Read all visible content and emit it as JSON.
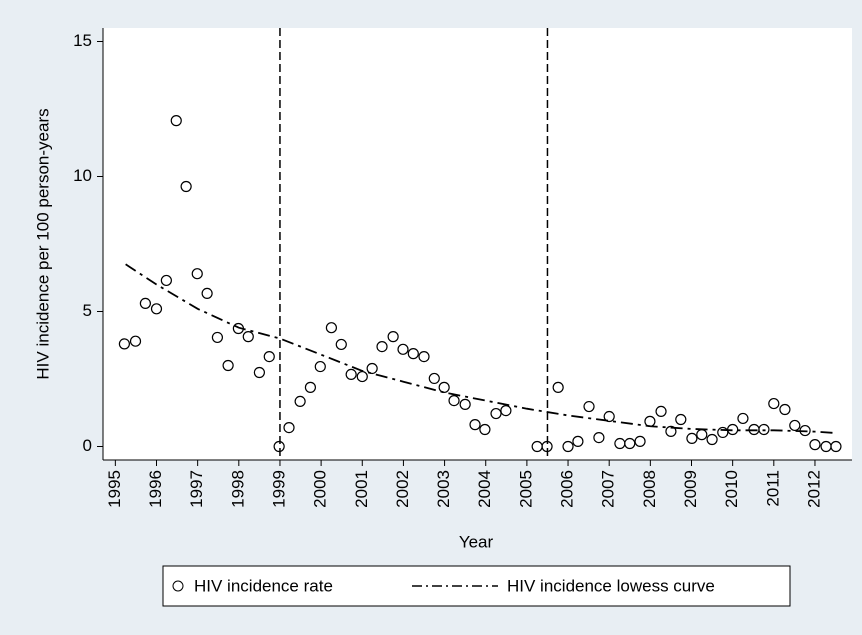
{
  "chart_data": {
    "type": "scatter",
    "x_label": "Year",
    "y_label": "HIV incidence per 100 person-years",
    "xlim": [
      1994.7,
      2012.9
    ],
    "ylim": [
      -0.5,
      15.5
    ],
    "xticks": [
      1995,
      1996,
      1997,
      1998,
      1999,
      2000,
      2001,
      2002,
      2003,
      2004,
      2005,
      2006,
      2007,
      2008,
      2009,
      2010,
      2011,
      2012
    ],
    "yticks": [
      0,
      5,
      10,
      15
    ],
    "vlines": [
      1999,
      2005.5
    ],
    "series": [
      {
        "name": "HIV incidence rate",
        "type": "scatter",
        "color": "#000000",
        "x": [
          1995.22,
          1995.49,
          1995.73,
          1996.0,
          1996.24,
          1996.48,
          1996.72,
          1996.99,
          1997.23,
          1997.48,
          1997.74,
          1997.99,
          1998.23,
          1998.5,
          1998.74,
          1998.98,
          1999.22,
          1999.49,
          1999.74,
          1999.98,
          2000.25,
          2000.49,
          2000.73,
          2001.0,
          2001.24,
          2001.48,
          2001.75,
          2001.99,
          2002.24,
          2002.5,
          2002.75,
          2002.99,
          2003.23,
          2003.5,
          2003.74,
          2003.98,
          2004.25,
          2004.49,
          2005.25,
          2005.49,
          2005.76,
          2006.0,
          2006.24,
          2006.51,
          2006.75,
          2007.0,
          2007.26,
          2007.5,
          2007.75,
          2007.99,
          2008.26,
          2008.5,
          2008.74,
          2009.01,
          2009.25,
          2009.5,
          2009.76,
          2010.0,
          2010.25,
          2010.52,
          2010.76,
          2011.0,
          2011.27,
          2011.51,
          2011.76,
          2012.0,
          2012.27,
          2012.51
        ],
        "values": [
          3.8,
          3.9,
          5.3,
          5.1,
          6.15,
          12.07,
          9.63,
          6.4,
          5.67,
          4.04,
          3.0,
          4.37,
          4.07,
          2.74,
          3.33,
          0,
          0.7,
          1.67,
          2.19,
          2.96,
          4.4,
          3.78,
          2.67,
          2.59,
          2.89,
          3.7,
          4.07,
          3.6,
          3.44,
          3.33,
          2.52,
          2.19,
          1.7,
          1.56,
          0.81,
          0.63,
          1.22,
          1.33,
          0,
          0,
          2.19,
          0,
          0.19,
          1.48,
          0.33,
          1.11,
          0.11,
          0.11,
          0.19,
          0.93,
          1.3,
          0.56,
          1.0,
          0.3,
          0.44,
          0.26,
          0.52,
          0.63,
          1.04,
          0.63,
          0.63,
          1.59,
          1.37,
          0.78,
          0.59,
          0.07,
          0,
          0
        ]
      },
      {
        "name": "HIV incidence lowess curve",
        "type": "line",
        "color": "#000000",
        "x": [
          1995.25,
          1996,
          1997,
          1998,
          1999,
          2000,
          2001,
          2002,
          2003,
          2004,
          2005,
          2006,
          2007,
          2008,
          2009,
          2010,
          2011,
          2012,
          2012.5
        ],
        "values": [
          6.75,
          6.0,
          5.1,
          4.4,
          4.0,
          3.4,
          2.8,
          2.4,
          2.0,
          1.7,
          1.4,
          1.15,
          0.95,
          0.75,
          0.65,
          0.6,
          0.6,
          0.55,
          0.5
        ]
      }
    ]
  }
}
